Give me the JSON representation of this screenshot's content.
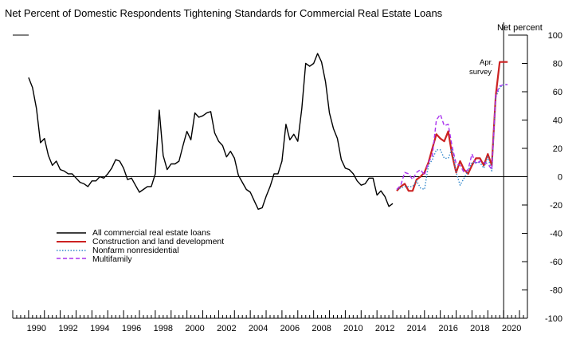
{
  "chart_data": {
    "type": "line",
    "title": "Net Percent of Domestic Respondents Tightening Standards for Commercial Real Estate Loans",
    "ylabel": "Net percent",
    "ylim": [
      -100,
      100
    ],
    "xlim": [
      1989.0,
      2021.5
    ],
    "y_ticks": [
      100,
      80,
      60,
      40,
      20,
      0,
      -20,
      -40,
      -60,
      -80,
      -100
    ],
    "x_ticks": [
      "1990",
      "1992",
      "1994",
      "1996",
      "1998",
      "2000",
      "2002",
      "2004",
      "2006",
      "2008",
      "2010",
      "2012",
      "2014",
      "2016",
      "2018",
      "2020"
    ],
    "grid": false,
    "legend_position": "lower-left",
    "annotation": {
      "lines": [
        "Apr.",
        "survey"
      ],
      "x": 2020.0
    },
    "series": [
      {
        "name": "All commercial real estate loans",
        "color": "#000000",
        "dash": "solid",
        "x": [
          1990.0,
          1990.25,
          1990.5,
          1990.75,
          1991.0,
          1991.25,
          1991.5,
          1991.75,
          1992.0,
          1992.25,
          1992.5,
          1992.75,
          1993.0,
          1993.25,
          1993.5,
          1993.75,
          1994.0,
          1994.25,
          1994.5,
          1994.75,
          1995.0,
          1995.25,
          1995.5,
          1995.75,
          1996.0,
          1996.25,
          1996.5,
          1996.75,
          1997.0,
          1997.25,
          1997.5,
          1997.75,
          1998.0,
          1998.25,
          1998.5,
          1998.75,
          1999.0,
          1999.25,
          1999.5,
          1999.75,
          2000.0,
          2000.25,
          2000.5,
          2000.75,
          2001.0,
          2001.25,
          2001.5,
          2001.75,
          2002.0,
          2002.25,
          2002.5,
          2002.75,
          2003.0,
          2003.25,
          2003.5,
          2003.75,
          2004.0,
          2004.25,
          2004.5,
          2004.75,
          2005.0,
          2005.25,
          2005.5,
          2005.75,
          2006.0,
          2006.25,
          2006.5,
          2006.75,
          2007.0,
          2007.25,
          2007.5,
          2007.75,
          2008.0,
          2008.25,
          2008.5,
          2008.75,
          2009.0,
          2009.25,
          2009.5,
          2009.75,
          2010.0,
          2010.25,
          2010.5,
          2010.75,
          2011.0,
          2011.25,
          2011.5,
          2011.75,
          2012.0,
          2012.25,
          2012.5,
          2012.75,
          2013.0
        ],
        "y": [
          70,
          63,
          48,
          24,
          27,
          15,
          8,
          11,
          5,
          4,
          2,
          2,
          -1,
          -4,
          -5,
          -7,
          -3,
          -3,
          0,
          -1,
          2,
          6,
          12,
          11,
          6,
          -2,
          -1,
          -6,
          -11,
          -9,
          -7,
          -7,
          2,
          47,
          15,
          5,
          9,
          9,
          11,
          22,
          32,
          26,
          45,
          42,
          43,
          45,
          46,
          31,
          25,
          22,
          14,
          18,
          13,
          1,
          -4,
          -9,
          -11,
          -17,
          -23,
          -22,
          -14,
          -7,
          2,
          2,
          11,
          37,
          26,
          30,
          25,
          48,
          80,
          78,
          80,
          87,
          81,
          67,
          45,
          34,
          27,
          12,
          6,
          5,
          2,
          -3,
          -6,
          -5,
          -1,
          -1,
          -13,
          -10,
          -14,
          -21,
          -19
        ]
      },
      {
        "name": "Construction and land development",
        "color": "#cc2222",
        "dash": "solid",
        "x": [
          2013.25,
          2013.5,
          2013.75,
          2014.0,
          2014.25,
          2014.5,
          2014.75,
          2015.0,
          2015.25,
          2015.5,
          2015.75,
          2016.0,
          2016.25,
          2016.5,
          2016.75,
          2017.0,
          2017.25,
          2017.5,
          2017.75,
          2018.0,
          2018.25,
          2018.5,
          2018.75,
          2019.0,
          2019.25,
          2019.5,
          2019.75,
          2020.0,
          2020.25
        ],
        "y": [
          -10,
          -7,
          -5,
          -10,
          -10,
          -2,
          0,
          3,
          10,
          20,
          30,
          27,
          25,
          32,
          15,
          3,
          11,
          5,
          2,
          8,
          13,
          13,
          8,
          16,
          8,
          57,
          81,
          81,
          81
        ]
      },
      {
        "name": "Nonfarm nonresidential",
        "color": "#3388cc",
        "dash": "dotted",
        "x": [
          2013.25,
          2013.5,
          2013.75,
          2014.0,
          2014.25,
          2014.5,
          2014.75,
          2015.0,
          2015.25,
          2015.5,
          2015.75,
          2016.0,
          2016.25,
          2016.5,
          2016.75,
          2017.0,
          2017.25,
          2017.5,
          2017.75,
          2018.0,
          2018.25,
          2018.5,
          2018.75,
          2019.0,
          2019.25,
          2019.5,
          2019.75,
          2020.0,
          2020.25
        ],
        "y": [
          -9,
          -8,
          -7,
          -7,
          -7,
          -3,
          -8,
          -9,
          8,
          12,
          19,
          19,
          13,
          13,
          20,
          3,
          -6,
          -1,
          4,
          10,
          10,
          10,
          6,
          14,
          4,
          56,
          63,
          65,
          65
        ]
      },
      {
        "name": "Multifamily",
        "color": "#aa33ee",
        "dash": "dashed",
        "x": [
          2013.25,
          2013.5,
          2013.75,
          2014.0,
          2014.25,
          2014.5,
          2014.75,
          2015.0,
          2015.25,
          2015.5,
          2015.75,
          2016.0,
          2016.25,
          2016.5,
          2016.75,
          2017.0,
          2017.25,
          2017.5,
          2017.75,
          2018.0,
          2018.25,
          2018.5,
          2018.75,
          2019.0,
          2019.25,
          2019.5,
          2019.75,
          2020.0,
          2020.25
        ],
        "y": [
          -9,
          -6,
          3,
          2,
          -2,
          3,
          5,
          1,
          10,
          15,
          40,
          44,
          36,
          37,
          21,
          9,
          8,
          3,
          5,
          16,
          9,
          11,
          10,
          9,
          5,
          58,
          64,
          65,
          65
        ]
      }
    ]
  }
}
